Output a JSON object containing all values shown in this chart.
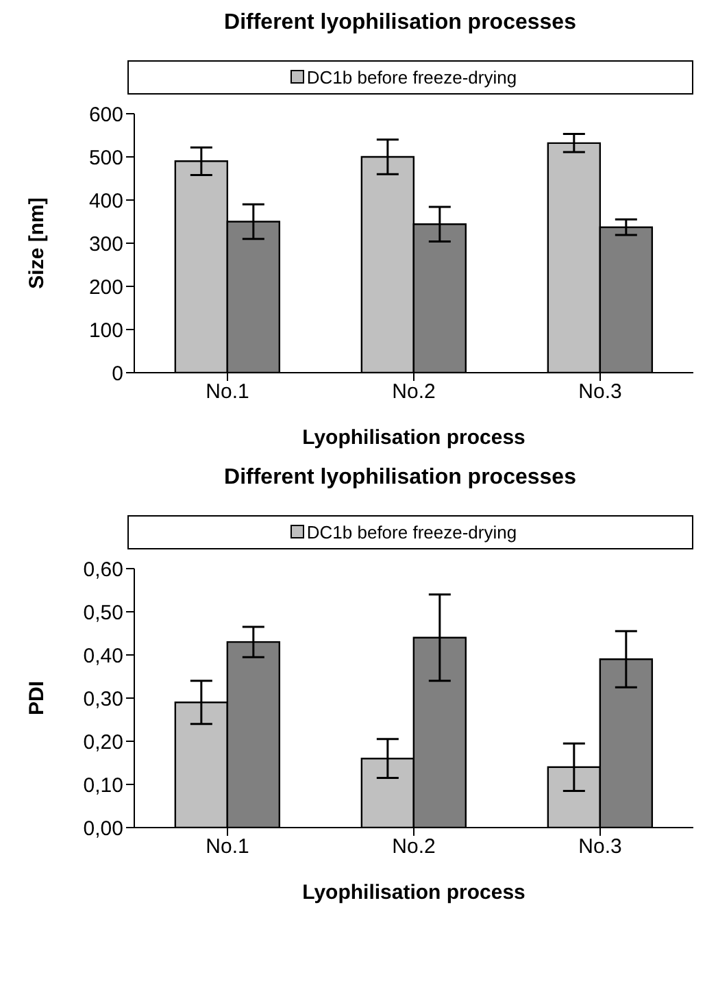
{
  "chart_data": [
    {
      "type": "bar",
      "title": "Different lyophilisation processes",
      "xlabel": "Lyophilisation process",
      "ylabel": "Size [nm]",
      "categories": [
        "No.1",
        "No.2",
        "No.3"
      ],
      "series": [
        {
          "name": "DC1b before freeze-drying",
          "color": "#c0c0c0",
          "values": [
            490,
            500,
            532
          ],
          "errors": [
            32,
            40,
            21
          ]
        },
        {
          "color": "#808080",
          "values": [
            350,
            344,
            337
          ],
          "errors": [
            40,
            40,
            18
          ]
        }
      ],
      "ylim": [
        0,
        600
      ],
      "yticks": [
        0,
        100,
        200,
        300,
        400,
        500,
        600
      ],
      "grid": false,
      "legend": "top"
    },
    {
      "type": "bar",
      "title": "Different lyophilisation processes",
      "xlabel": "Lyophilisation process",
      "ylabel": "PDI",
      "categories": [
        "No.1",
        "No.2",
        "No.3"
      ],
      "series": [
        {
          "name": "DC1b before freeze-drying",
          "color": "#c0c0c0",
          "values": [
            0.29,
            0.16,
            0.14
          ],
          "errors": [
            0.05,
            0.045,
            0.055
          ]
        },
        {
          "color": "#808080",
          "values": [
            0.43,
            0.44,
            0.39
          ],
          "errors": [
            0.035,
            0.1,
            0.065
          ]
        }
      ],
      "ylim": [
        0,
        0.6
      ],
      "yticks": [
        {
          "value": 0,
          "label": "0,00"
        },
        {
          "value": 0.1,
          "label": "0,10"
        },
        {
          "value": 0.2,
          "label": "0,20"
        },
        {
          "value": 0.3,
          "label": "0,30"
        },
        {
          "value": 0.4,
          "label": "0,40"
        },
        {
          "value": 0.5,
          "label": "0,50"
        },
        {
          "value": 0.6,
          "label": "0,60"
        }
      ],
      "grid": false,
      "legend": "top"
    }
  ]
}
